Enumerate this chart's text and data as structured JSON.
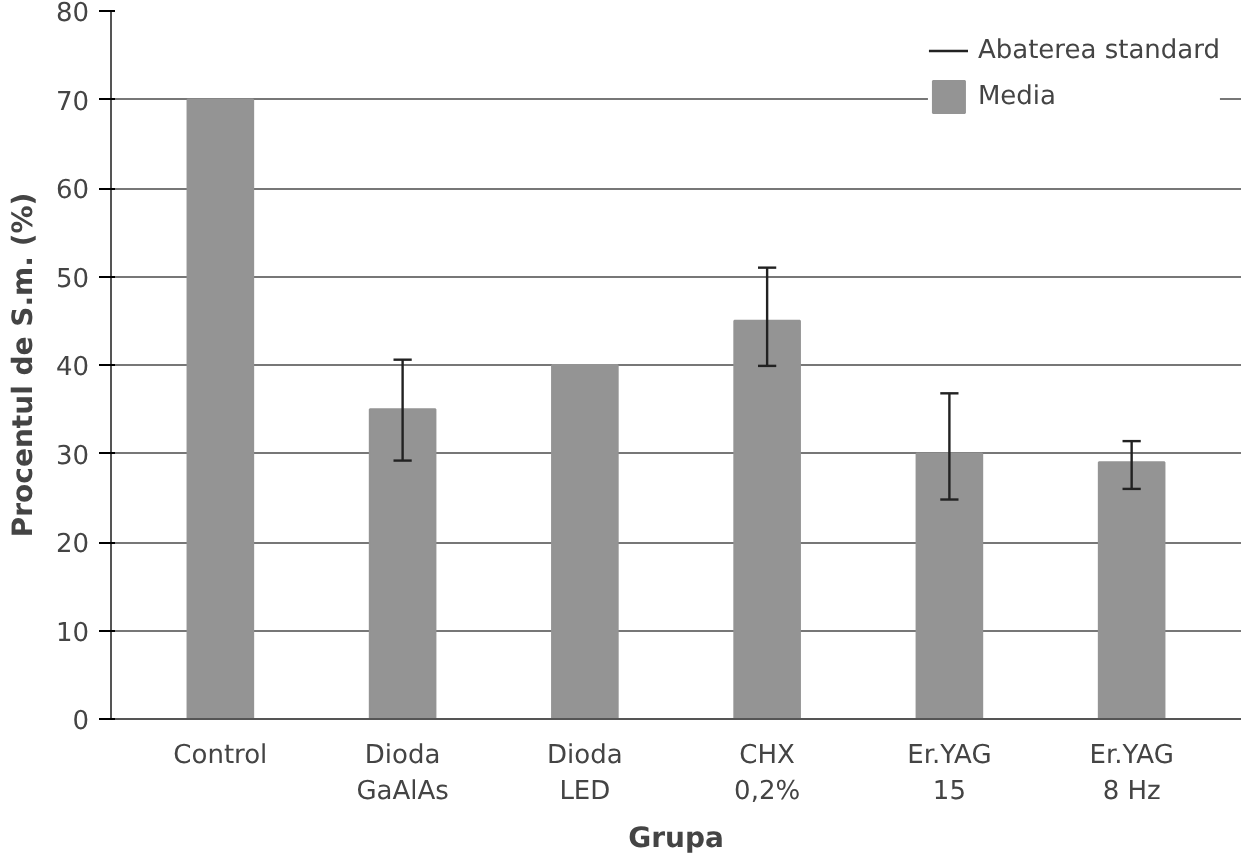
{
  "chart_data": {
    "type": "bar",
    "xlabel": "Grupa",
    "ylabel": "Procentul de S.m. (%)",
    "categories": [
      "Control",
      "Dioda\nGaAlAs",
      "Dioda\nLED",
      "CHX\n0,2%",
      "Er.YAG\n15",
      "Er.YAG\n8 Hz"
    ],
    "series": [
      {
        "name": "Media",
        "color": "#949494",
        "values": [
          70,
          35,
          40,
          45,
          30,
          29
        ],
        "errors": [
          null,
          [
            29.2,
            40.6
          ],
          null,
          [
            39.9,
            51
          ],
          [
            24.8,
            36.8
          ],
          [
            26,
            31.4
          ]
        ]
      }
    ],
    "annotations": [
      "Abaterea standard"
    ],
    "ylim": [
      0,
      80
    ],
    "yticks": [
      0,
      10,
      20,
      30,
      40,
      50,
      60,
      70,
      80
    ],
    "grid": "y",
    "legend": "top right"
  }
}
